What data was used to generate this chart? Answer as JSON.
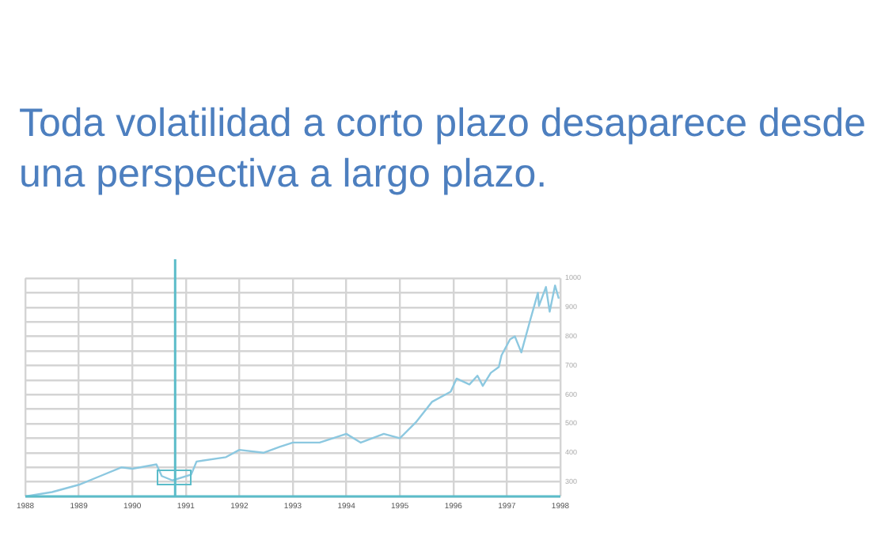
{
  "chart_data": {
    "type": "line",
    "title": "Toda volatilidad a corto plazo desaparece desde una perspectiva a largo plazo.",
    "x": [
      1988.0,
      1988.5,
      1989.0,
      1989.4,
      1989.8,
      1990.0,
      1990.45,
      1990.55,
      1990.75,
      1991.1,
      1991.2,
      1991.75,
      1992.0,
      1992.45,
      1992.75,
      1993.0,
      1993.5,
      1994.0,
      1994.27,
      1994.7,
      1995.0,
      1995.3,
      1995.6,
      1995.95,
      1996.06,
      1996.3,
      1996.45,
      1996.55,
      1996.7,
      1996.85,
      1996.9,
      1997.06,
      1997.15,
      1997.27,
      1997.42,
      1997.58,
      1997.6,
      1997.73,
      1997.8,
      1997.9,
      1997.97
    ],
    "series": [
      {
        "color": "#8cc8e0",
        "values": [
          250,
          265,
          290,
          320,
          350,
          345,
          360,
          320,
          305,
          325,
          370,
          385,
          410,
          400,
          420,
          435,
          435,
          465,
          435,
          465,
          450,
          505,
          575,
          610,
          655,
          635,
          665,
          630,
          675,
          695,
          735,
          790,
          800,
          745,
          845,
          950,
          905,
          970,
          885,
          975,
          930
        ]
      }
    ],
    "xlim": [
      1988,
      1998
    ],
    "xticks": [
      1988,
      1989,
      1990,
      1991,
      1992,
      1993,
      1994,
      1995,
      1996,
      1997,
      1998
    ],
    "ylim": [
      250,
      1000
    ],
    "yticks": [
      {
        "value": 250,
        "label": null
      },
      300,
      {
        "value": 350,
        "label": null
      },
      400,
      {
        "value": 450,
        "label": null
      },
      500,
      {
        "value": 550,
        "label": null
      },
      600,
      {
        "value": 650,
        "label": null
      },
      700,
      {
        "value": 750,
        "label": null
      },
      800,
      {
        "value": 850,
        "label": null
      },
      900,
      {
        "value": 950,
        "label": null
      },
      1000
    ],
    "ref_lines": [
      {
        "axis": "x",
        "value": 1990.8,
        "color": "#5bbcc9"
      }
    ],
    "grid": true,
    "legend": false,
    "marker": "none",
    "line_style": "solid"
  }
}
